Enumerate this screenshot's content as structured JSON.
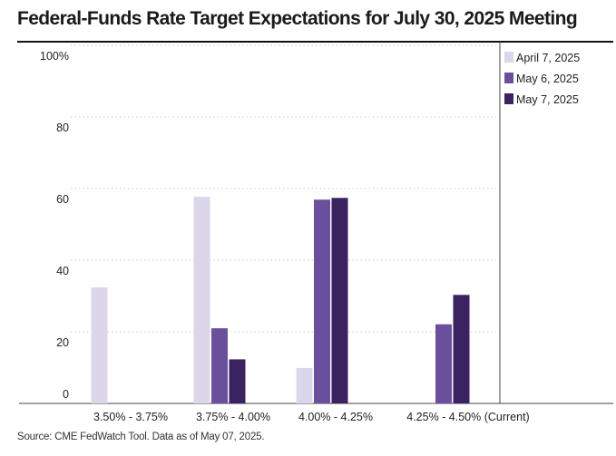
{
  "title": "Federal-Funds Rate Target Expectations for July 30, 2025 Meeting",
  "source": "Source: CME FedWatch Tool. Data as of May 07, 2025.",
  "colors": {
    "April 7, 2025": "#dcd6eb",
    "May 6, 2025": "#6a4f9c",
    "May 7, 2025": "#3b2260"
  },
  "chart_data": {
    "type": "bar",
    "categories": [
      "3.50% - 3.75%",
      "3.75% - 4.00%",
      "4.00% - 4.25%",
      "4.25% - 4.50% (Current)"
    ],
    "series": [
      {
        "name": "April 7, 2025",
        "values": [
          32.4,
          57.7,
          9.9,
          0
        ]
      },
      {
        "name": "May 6, 2025",
        "values": [
          0,
          21.0,
          56.9,
          22.1
        ]
      },
      {
        "name": "May 7, 2025",
        "values": [
          0,
          12.3,
          57.4,
          30.3
        ]
      }
    ],
    "yticks": [
      0,
      20,
      40,
      60,
      80,
      100
    ],
    "ytick_labels": [
      "0",
      "20",
      "40",
      "60",
      "80",
      "100%"
    ],
    "ylim": [
      0,
      100
    ],
    "grid": true,
    "legend_position": "top-right",
    "title": "Federal-Funds Rate Target Expectations for July 30, 2025 Meeting"
  }
}
